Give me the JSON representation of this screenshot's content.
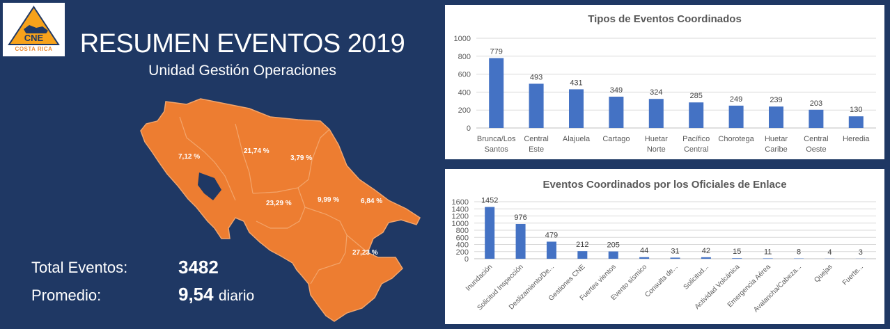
{
  "logo": {
    "abbr": "CNE",
    "country": "COSTA RICA"
  },
  "header": {
    "title": "RESUMEN EVENTOS 2019",
    "subtitle": "Unidad Gestión Operaciones"
  },
  "map": {
    "region_color": "#ed7d31",
    "border_color": "#f3a56b",
    "labels": [
      "7,12 %",
      "21,74 %",
      "3,79 %",
      "23,29 %",
      "9,99 %",
      "6,84 %",
      "27,23 %"
    ]
  },
  "stats": {
    "total_label": "Total Eventos:",
    "total_value": "3482",
    "avg_label": "Promedio:",
    "avg_value": "9,54",
    "avg_suffix": "diario"
  },
  "colors": {
    "bar": "#4472c4",
    "grid": "#d9d9d9",
    "text": "#595959"
  },
  "chart_data": [
    {
      "type": "bar",
      "title": "Tipos de Eventos Coordinados",
      "categories": [
        [
          "Brunca/Los",
          "Santos"
        ],
        [
          "Central",
          "Este"
        ],
        [
          "Alajuela"
        ],
        [
          "Cartago"
        ],
        [
          "Huetar",
          "Norte"
        ],
        [
          "Pacífico",
          "Central"
        ],
        [
          "Chorotega"
        ],
        [
          "Huetar",
          "Caribe"
        ],
        [
          "Central",
          "Oeste"
        ],
        [
          "Heredia"
        ]
      ],
      "values": [
        779,
        493,
        431,
        349,
        324,
        285,
        249,
        239,
        203,
        130
      ],
      "ylim": [
        0,
        1000
      ],
      "yticks": [
        0,
        200,
        400,
        600,
        800,
        1000
      ],
      "grid": true,
      "xlabel": "",
      "ylabel": ""
    },
    {
      "type": "bar",
      "title": "Eventos Coordinados por los Oficiales de Enlace",
      "categories": [
        "Inundación",
        "Solicitud Inspección",
        "Deslizamiento/De...",
        "Gestiones CNE",
        "Fuertes vientos",
        "Evento sísmico",
        "Consulta de...",
        "Solicitud...",
        "Actividad Volcánica",
        "Emergencia Aérea",
        "Avalancha/Cabeza...",
        "Quejas",
        "Fuerte..."
      ],
      "values": [
        1452,
        976,
        479,
        212,
        205,
        44,
        31,
        42,
        15,
        11,
        8,
        4,
        3
      ],
      "ylim": [
        0,
        1600
      ],
      "yticks": [
        0,
        200,
        400,
        600,
        800,
        1000,
        1200,
        1400,
        1600
      ],
      "grid": true,
      "xlabel": "",
      "ylabel": ""
    }
  ]
}
